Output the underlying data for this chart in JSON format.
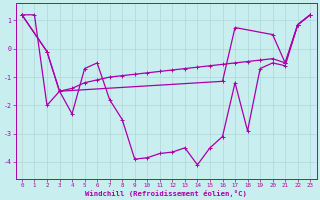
{
  "title": "",
  "xlabel": "Windchill (Refroidissement éolien,°C)",
  "background_color": "#c8eef0",
  "line_color": "#aa00aa",
  "grid_color": "#b0d8d8",
  "xlim": [
    -0.5,
    23.5
  ],
  "ylim": [
    -4.6,
    1.6
  ],
  "yticks": [
    1,
    0,
    -1,
    -2,
    -3,
    -4
  ],
  "xticks": [
    0,
    1,
    2,
    3,
    4,
    5,
    6,
    7,
    8,
    9,
    10,
    11,
    12,
    13,
    14,
    15,
    16,
    17,
    18,
    19,
    20,
    21,
    22,
    23
  ],
  "line1_x": [
    0,
    2,
    3,
    4,
    5,
    6,
    7,
    8,
    9,
    10,
    11,
    12,
    13,
    14,
    15,
    16,
    17,
    18,
    19,
    20,
    21,
    22,
    23
  ],
  "line1_y": [
    1.2,
    -0.1,
    -1.5,
    -1.4,
    -1.2,
    -1.1,
    -1.0,
    -0.95,
    -0.9,
    -0.85,
    -0.8,
    -0.75,
    -0.7,
    -0.65,
    -0.6,
    -0.55,
    -0.5,
    -0.45,
    -0.4,
    -0.35,
    -0.5,
    0.85,
    1.2
  ],
  "line2_x": [
    0,
    2,
    3,
    16,
    17,
    20,
    21,
    22,
    23
  ],
  "line2_y": [
    1.2,
    -0.1,
    -1.5,
    -1.15,
    0.75,
    0.5,
    -0.5,
    0.85,
    1.2
  ],
  "line3_x": [
    0,
    1,
    2,
    3,
    4,
    5,
    6,
    7,
    8,
    9,
    10,
    11,
    12,
    13,
    14,
    15,
    16,
    17,
    18,
    19,
    20,
    21,
    22,
    23
  ],
  "line3_y": [
    1.2,
    1.2,
    -2.0,
    -1.5,
    -2.3,
    -0.7,
    -0.5,
    -1.8,
    -2.5,
    -3.9,
    -3.85,
    -3.7,
    -3.65,
    -3.5,
    -4.1,
    -3.5,
    -3.1,
    -1.2,
    -2.9,
    -0.7,
    -0.5,
    -0.6,
    0.85,
    1.2
  ]
}
